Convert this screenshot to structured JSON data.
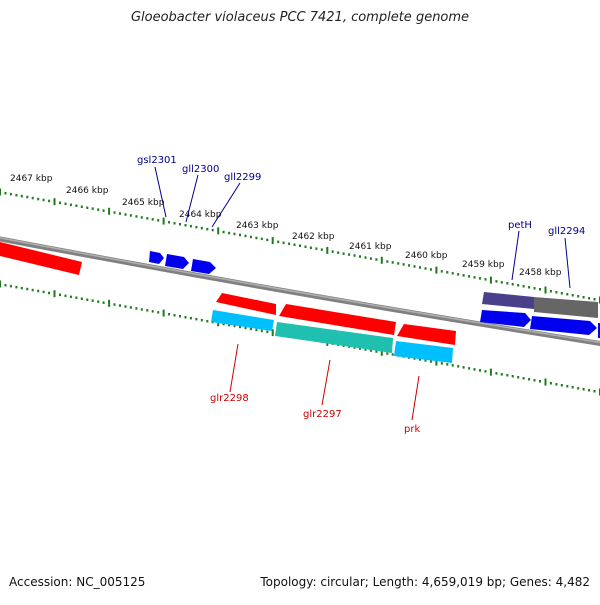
{
  "title": "Gloeobacter violaceus PCC 7421, complete genome",
  "footer": {
    "accession": "Accession: NC_005125",
    "summary": "Topology: circular; Length: 4,659,019 bp; Genes: 4,482"
  },
  "ticks": [
    {
      "label": "2467 kbp"
    },
    {
      "label": "2466 kbp"
    },
    {
      "label": "2465 kbp"
    },
    {
      "label": "2464 kbp"
    },
    {
      "label": "2463 kbp"
    },
    {
      "label": "2462 kbp"
    },
    {
      "label": "2461 kbp"
    },
    {
      "label": "2460 kbp"
    },
    {
      "label": "2459 kbp"
    },
    {
      "label": "2458 kbp"
    }
  ],
  "gene_labels": {
    "gsl2301": "gsl2301",
    "gll2300": "gll2300",
    "gll2299": "gll2299",
    "petH": "petH",
    "gll2294": "gll2294",
    "glr2298": "glr2298",
    "glr2297": "glr2297",
    "prk": "prk"
  },
  "colors": {
    "forward_cds": "#ff0000",
    "forward_gene": "#00bfff",
    "forward_misc": "#20c0b0",
    "reverse_cds": "#0000ee",
    "reverse_gene_dark": "#4a3f8a",
    "reverse_gene_gray": "#666666",
    "backbone": "#808080",
    "tick": "#1f7a1f",
    "label_reverse": "#00008b",
    "label_forward": "#cc0000"
  }
}
